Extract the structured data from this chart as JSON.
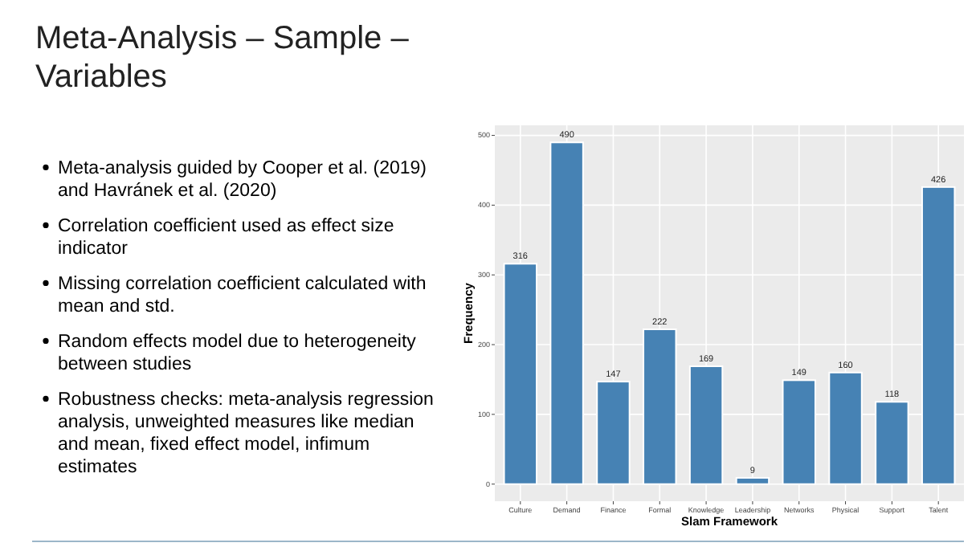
{
  "chart_data": {
    "type": "bar",
    "title": "Meta-Analysis – Sample – Variables",
    "annotations": [
      "Meta-analysis guided by Cooper et al. (2019) and Havránek et al. (2020)",
      "Correlation coefficient used as effect size indicator",
      "Missing correlation coefficient calculated with mean and std.",
      "Random effects model due to heterogeneity between studies",
      "Robustness checks: meta-analysis regression analysis, unweighted measures like median and mean, fixed effect model, infimum estimates"
    ],
    "xlabel": "Slam Framework",
    "ylabel": "Frequency",
    "categories": [
      "Culture",
      "Demand",
      "Finance",
      "Formal",
      "Knowledge",
      "Leadership",
      "Networks",
      "Physical",
      "Support",
      "Talent"
    ],
    "values": [
      316,
      490,
      147,
      222,
      169,
      9,
      149,
      160,
      118,
      426
    ],
    "color": "#4682b4",
    "ylim": [
      -24.5,
      514.5
    ],
    "yticks": [
      0,
      100,
      200,
      300,
      400,
      500
    ],
    "grid": true,
    "data_labels": true
  }
}
